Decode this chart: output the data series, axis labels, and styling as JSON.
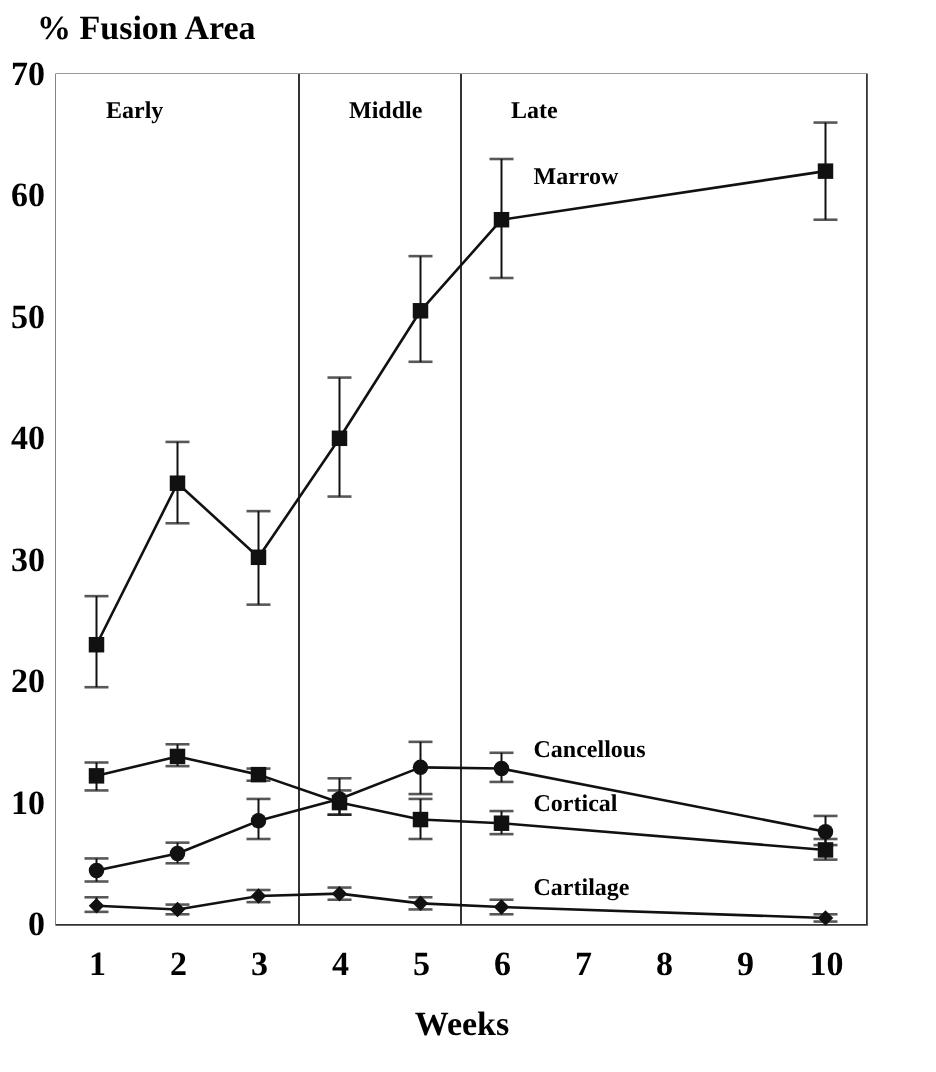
{
  "chart_data": {
    "type": "line",
    "ylabel": "% Fusion Area",
    "xlabel": "Weeks",
    "x": [
      1,
      2,
      3,
      4,
      5,
      6,
      10
    ],
    "xlim": [
      0.5,
      10.5
    ],
    "xticks": [
      1,
      2,
      3,
      4,
      5,
      6,
      7,
      8,
      9,
      10
    ],
    "ylim": [
      0,
      70
    ],
    "yticks": [
      0,
      10,
      20,
      30,
      40,
      50,
      60,
      70
    ],
    "grid": false,
    "line_style": "solid",
    "series": [
      {
        "name": "Marrow",
        "color": "#111111",
        "marker": "square",
        "values": [
          23,
          36.3,
          30.2,
          40,
          50.5,
          58,
          62
        ],
        "errors": [
          [
            19.5,
            27
          ],
          [
            33,
            39.7
          ],
          [
            26.3,
            34
          ],
          [
            35.2,
            45
          ],
          [
            46.3,
            55
          ],
          [
            53.2,
            63
          ],
          [
            58,
            66
          ]
        ]
      },
      {
        "name": "Cancellous",
        "color": "#111111",
        "marker": "circle",
        "values": [
          4.4,
          5.8,
          8.5,
          10.3,
          12.9,
          12.8,
          7.6
        ],
        "errors": [
          [
            3.5,
            5.4
          ],
          [
            5,
            6.7
          ],
          [
            7,
            10.3
          ],
          [
            9,
            12
          ],
          [
            10.7,
            15
          ],
          [
            11.7,
            14.1
          ],
          [
            6.5,
            8.9
          ]
        ]
      },
      {
        "name": "Cortical",
        "color": "#111111",
        "marker": "square",
        "values": [
          12.2,
          13.8,
          12.3,
          10,
          8.6,
          8.3,
          6.1
        ],
        "errors": [
          [
            11,
            13.3
          ],
          [
            13,
            14.8
          ],
          [
            11.8,
            12.8
          ],
          [
            9,
            11
          ],
          [
            7,
            10.3
          ],
          [
            7.4,
            9.3
          ],
          [
            5.3,
            7
          ]
        ]
      },
      {
        "name": "Cartilage",
        "color": "#111111",
        "marker": "diamond",
        "values": [
          1.5,
          1.2,
          2.3,
          2.5,
          1.7,
          1.4,
          0.5
        ],
        "errors": [
          [
            1,
            2.2
          ],
          [
            0.8,
            1.6
          ],
          [
            1.8,
            2.8
          ],
          [
            2,
            3
          ],
          [
            1.2,
            2.2
          ],
          [
            0.8,
            2
          ],
          [
            0.2,
            0.8
          ]
        ]
      }
    ],
    "bands": [
      {
        "axis": "x",
        "from": 0.5,
        "to": 3.5,
        "label": "Early",
        "color": "#ffffff"
      },
      {
        "axis": "x",
        "from": 3.5,
        "to": 5.5,
        "label": "Middle",
        "color": "#ffffff"
      },
      {
        "axis": "x",
        "from": 5.5,
        "to": 10.5,
        "label": "Late",
        "color": "#ffffff"
      }
    ],
    "ref_lines": [
      {
        "axis": "x",
        "value": 3.5,
        "label": null
      },
      {
        "axis": "x",
        "value": 5.5,
        "label": null
      }
    ]
  }
}
